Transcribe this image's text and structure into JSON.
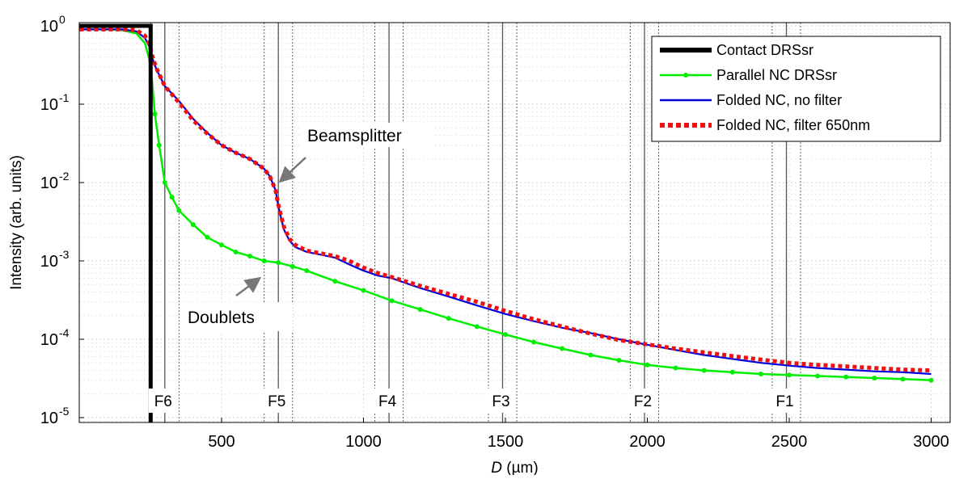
{
  "chart_data": {
    "type": "line",
    "ylabel": "Intensity (arb. units)",
    "xlabel_italic": "D",
    "xlabel_unit": " (µm)",
    "xlim": [
      0,
      3000
    ],
    "ylim": [
      7e-06,
      1.2
    ],
    "yscale": "log",
    "grid": true,
    "x_ticks": [
      500,
      1000,
      1500,
      2000,
      2500,
      3000
    ],
    "y_ticks": [
      {
        "value": 1,
        "base": "10",
        "exp": "0"
      },
      {
        "value": 0.1,
        "base": "10",
        "exp": "-1"
      },
      {
        "value": 0.01,
        "base": "10",
        "exp": "-2"
      },
      {
        "value": 0.001,
        "base": "10",
        "exp": "-3"
      },
      {
        "value": 0.0001,
        "base": "10",
        "exp": "-4"
      },
      {
        "value": 1e-05,
        "base": "10",
        "exp": "-5"
      }
    ],
    "legend_position": "top-right",
    "series": [
      {
        "name": "Contact DRSsr",
        "color": "#000000",
        "style": "solid-thick",
        "x": [
          0,
          250,
          250,
          3000
        ],
        "y": [
          1,
          1,
          7e-06,
          7e-06
        ]
      },
      {
        "name": "Parallel NC DRSsr",
        "color": "#00ee00",
        "style": "solid-markers",
        "x": [
          0,
          100,
          150,
          200,
          230,
          245,
          255,
          265,
          280,
          300,
          325,
          350,
          400,
          450,
          500,
          550,
          600,
          650,
          700,
          750,
          800,
          900,
          1000,
          1100,
          1200,
          1300,
          1400,
          1500,
          1600,
          1700,
          1800,
          1900,
          2000,
          2100,
          2200,
          2300,
          2400,
          2500,
          2600,
          2700,
          2800,
          2900,
          3000
        ],
        "y": [
          0.9,
          0.9,
          0.88,
          0.8,
          0.6,
          0.38,
          0.2,
          0.075,
          0.03,
          0.01,
          0.0065,
          0.0044,
          0.0029,
          0.002,
          0.0016,
          0.0013,
          0.00115,
          0.001,
          0.00095,
          0.00085,
          0.00075,
          0.00055,
          0.00042,
          0.00031,
          0.00024,
          0.000185,
          0.000145,
          0.000115,
          9.2e-05,
          7.6e-05,
          6.3e-05,
          5.4e-05,
          4.7e-05,
          4.3e-05,
          4e-05,
          3.8e-05,
          3.6e-05,
          3.5e-05,
          3.4e-05,
          3.3e-05,
          3.2e-05,
          3.1e-05,
          3e-05
        ]
      },
      {
        "name": "Folded NC, no filter",
        "color": "#0000dd",
        "style": "solid",
        "x": [
          0,
          100,
          150,
          200,
          230,
          245,
          255,
          270,
          300,
          350,
          400,
          450,
          500,
          550,
          600,
          650,
          670,
          690,
          700,
          710,
          720,
          740,
          760,
          800,
          850,
          900,
          950,
          1000,
          1050,
          1100,
          1200,
          1300,
          1400,
          1500,
          1600,
          1700,
          1800,
          1900,
          2000,
          2100,
          2200,
          2300,
          2400,
          2500,
          2600,
          2700,
          2800,
          2900,
          3000
        ],
        "y": [
          0.9,
          0.9,
          0.9,
          0.85,
          0.7,
          0.55,
          0.4,
          0.28,
          0.17,
          0.11,
          0.065,
          0.043,
          0.03,
          0.024,
          0.02,
          0.015,
          0.012,
          0.008,
          0.005,
          0.0035,
          0.0025,
          0.0018,
          0.0015,
          0.0013,
          0.0012,
          0.0011,
          0.0009,
          0.00075,
          0.00065,
          0.0006,
          0.00045,
          0.00035,
          0.00027,
          0.00021,
          0.00017,
          0.00014,
          0.00012,
          0.0001,
          8.5e-05,
          7.3e-05,
          6.3e-05,
          5.6e-05,
          5e-05,
          4.6e-05,
          4.3e-05,
          4.1e-05,
          3.9e-05,
          3.8e-05,
          3.6e-05
        ]
      },
      {
        "name": "Folded NC, filter 650nm",
        "color": "#ee1111",
        "style": "dotted",
        "x": [
          0,
          100,
          150,
          200,
          230,
          245,
          255,
          270,
          300,
          350,
          400,
          450,
          500,
          550,
          600,
          650,
          670,
          690,
          700,
          710,
          720,
          740,
          760,
          800,
          850,
          900,
          950,
          1000,
          1050,
          1100,
          1200,
          1300,
          1400,
          1500,
          1600,
          1700,
          1800,
          1900,
          2000,
          2100,
          2200,
          2300,
          2400,
          2500,
          2600,
          2700,
          2800,
          2900,
          3000
        ],
        "y": [
          0.9,
          0.9,
          0.9,
          0.88,
          0.75,
          0.6,
          0.42,
          0.29,
          0.17,
          0.105,
          0.062,
          0.042,
          0.03,
          0.024,
          0.02,
          0.015,
          0.012,
          0.008,
          0.0052,
          0.0037,
          0.0027,
          0.0019,
          0.0016,
          0.00135,
          0.00125,
          0.00115,
          0.001,
          0.00082,
          0.0007,
          0.00062,
          0.00048,
          0.00038,
          0.0003,
          0.00023,
          0.00018,
          0.000145,
          0.000118,
          9.8e-05,
          8.6e-05,
          7.6e-05,
          6.8e-05,
          6.1e-05,
          5.5e-05,
          5e-05,
          4.7e-05,
          4.5e-05,
          4.3e-05,
          4.1e-05,
          4e-05
        ]
      }
    ],
    "fiber_markers": [
      {
        "label": "F6",
        "x": 300,
        "dotted": [
          250,
          350
        ]
      },
      {
        "label": "F5",
        "x": 700,
        "dotted": [
          650,
          750
        ]
      },
      {
        "label": "F4",
        "x": 1090,
        "dotted": [
          1040,
          1140
        ]
      },
      {
        "label": "F3",
        "x": 1490,
        "dotted": [
          1440,
          1540
        ]
      },
      {
        "label": "F2",
        "x": 1990,
        "dotted": [
          1940,
          2040
        ]
      },
      {
        "label": "F1",
        "x": 2490,
        "dotted": [
          2440,
          2540
        ]
      }
    ],
    "annotations": [
      {
        "text": "Beamsplitter",
        "arrow_to_x": 700,
        "arrow_to_y": 0.013
      },
      {
        "text": "Doublets",
        "arrow_to_x": 640,
        "arrow_to_y": 0.00085
      }
    ]
  }
}
